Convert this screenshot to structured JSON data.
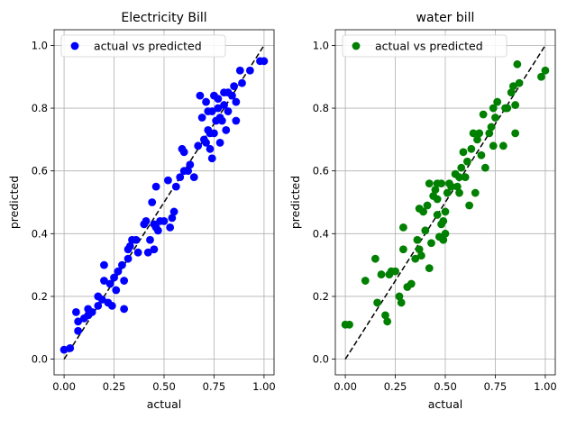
{
  "chart_data": [
    {
      "type": "scatter",
      "title": "Electricity Bill",
      "xlabel": "actual",
      "ylabel": "predicted",
      "xlim": [
        -0.05,
        1.05
      ],
      "ylim": [
        -0.05,
        1.05
      ],
      "xticks": [
        "0.00",
        "0.25",
        "0.50",
        "0.75",
        "1.00"
      ],
      "yticks": [
        "0.0",
        "0.2",
        "0.4",
        "0.6",
        "0.8",
        "1.0"
      ],
      "grid": true,
      "legend_position": "top-left",
      "reference_line": {
        "style": "dashed",
        "color": "#000000",
        "from": [
          0,
          0
        ],
        "to": [
          1,
          1
        ]
      },
      "series": [
        {
          "name": "actual vs predicted",
          "color": "#0000ff",
          "points": [
            [
              0.0,
              0.03
            ],
            [
              0.03,
              0.035
            ],
            [
              0.06,
              0.15
            ],
            [
              0.07,
              0.09
            ],
            [
              0.07,
              0.12
            ],
            [
              0.1,
              0.13
            ],
            [
              0.12,
              0.14
            ],
            [
              0.12,
              0.16
            ],
            [
              0.14,
              0.15
            ],
            [
              0.17,
              0.17
            ],
            [
              0.17,
              0.2
            ],
            [
              0.19,
              0.19
            ],
            [
              0.2,
              0.25
            ],
            [
              0.2,
              0.3
            ],
            [
              0.22,
              0.18
            ],
            [
              0.23,
              0.24
            ],
            [
              0.24,
              0.17
            ],
            [
              0.25,
              0.26
            ],
            [
              0.26,
              0.22
            ],
            [
              0.27,
              0.28
            ],
            [
              0.29,
              0.3
            ],
            [
              0.3,
              0.25
            ],
            [
              0.3,
              0.16
            ],
            [
              0.32,
              0.32
            ],
            [
              0.32,
              0.35
            ],
            [
              0.33,
              0.36
            ],
            [
              0.34,
              0.38
            ],
            [
              0.36,
              0.38
            ],
            [
              0.37,
              0.34
            ],
            [
              0.4,
              0.43
            ],
            [
              0.41,
              0.44
            ],
            [
              0.42,
              0.34
            ],
            [
              0.43,
              0.38
            ],
            [
              0.44,
              0.5
            ],
            [
              0.45,
              0.35
            ],
            [
              0.45,
              0.43
            ],
            [
              0.46,
              0.55
            ],
            [
              0.46,
              0.42
            ],
            [
              0.47,
              0.41
            ],
            [
              0.48,
              0.44
            ],
            [
              0.5,
              0.44
            ],
            [
              0.52,
              0.57
            ],
            [
              0.53,
              0.42
            ],
            [
              0.54,
              0.45
            ],
            [
              0.55,
              0.47
            ],
            [
              0.56,
              0.55
            ],
            [
              0.58,
              0.58
            ],
            [
              0.59,
              0.67
            ],
            [
              0.6,
              0.66
            ],
            [
              0.6,
              0.6
            ],
            [
              0.62,
              0.6
            ],
            [
              0.63,
              0.62
            ],
            [
              0.65,
              0.58
            ],
            [
              0.67,
              0.68
            ],
            [
              0.68,
              0.84
            ],
            [
              0.69,
              0.77
            ],
            [
              0.7,
              0.7
            ],
            [
              0.71,
              0.69
            ],
            [
              0.71,
              0.82
            ],
            [
              0.72,
              0.79
            ],
            [
              0.72,
              0.73
            ],
            [
              0.73,
              0.72
            ],
            [
              0.73,
              0.67
            ],
            [
              0.74,
              0.64
            ],
            [
              0.74,
              0.79
            ],
            [
              0.75,
              0.72
            ],
            [
              0.75,
              0.84
            ],
            [
              0.76,
              0.76
            ],
            [
              0.77,
              0.83
            ],
            [
              0.77,
              0.8
            ],
            [
              0.78,
              0.77
            ],
            [
              0.78,
              0.69
            ],
            [
              0.79,
              0.76
            ],
            [
              0.8,
              0.85
            ],
            [
              0.8,
              0.81
            ],
            [
              0.81,
              0.73
            ],
            [
              0.82,
              0.79
            ],
            [
              0.82,
              0.85
            ],
            [
              0.84,
              0.84
            ],
            [
              0.85,
              0.87
            ],
            [
              0.86,
              0.76
            ],
            [
              0.86,
              0.82
            ],
            [
              0.88,
              0.92
            ],
            [
              0.89,
              0.88
            ],
            [
              0.93,
              0.92
            ],
            [
              0.98,
              0.95
            ],
            [
              1.0,
              0.95
            ]
          ]
        }
      ]
    },
    {
      "type": "scatter",
      "title": "water bill",
      "xlabel": "actual",
      "ylabel": "predicted",
      "xlim": [
        -0.05,
        1.05
      ],
      "ylim": [
        -0.05,
        1.05
      ],
      "xticks": [
        "0.00",
        "0.25",
        "0.50",
        "0.75",
        "1.00"
      ],
      "yticks": [
        "0.0",
        "0.2",
        "0.4",
        "0.6",
        "0.8",
        "1.0"
      ],
      "grid": true,
      "legend_position": "top-left",
      "reference_line": {
        "style": "dashed",
        "color": "#000000",
        "from": [
          0,
          0
        ],
        "to": [
          1,
          1
        ]
      },
      "series": [
        {
          "name": "actual vs predicted",
          "color": "#008000",
          "points": [
            [
              0.0,
              0.11
            ],
            [
              0.02,
              0.11
            ],
            [
              0.1,
              0.25
            ],
            [
              0.15,
              0.32
            ],
            [
              0.16,
              0.18
            ],
            [
              0.18,
              0.27
            ],
            [
              0.2,
              0.14
            ],
            [
              0.21,
              0.12
            ],
            [
              0.22,
              0.27
            ],
            [
              0.23,
              0.28
            ],
            [
              0.25,
              0.28
            ],
            [
              0.27,
              0.2
            ],
            [
              0.28,
              0.18
            ],
            [
              0.29,
              0.35
            ],
            [
              0.29,
              0.42
            ],
            [
              0.31,
              0.23
            ],
            [
              0.33,
              0.24
            ],
            [
              0.35,
              0.32
            ],
            [
              0.36,
              0.38
            ],
            [
              0.37,
              0.48
            ],
            [
              0.37,
              0.35
            ],
            [
              0.38,
              0.33
            ],
            [
              0.39,
              0.47
            ],
            [
              0.4,
              0.41
            ],
            [
              0.41,
              0.49
            ],
            [
              0.42,
              0.29
            ],
            [
              0.42,
              0.56
            ],
            [
              0.43,
              0.37
            ],
            [
              0.44,
              0.52
            ],
            [
              0.45,
              0.54
            ],
            [
              0.46,
              0.56
            ],
            [
              0.46,
              0.51
            ],
            [
              0.46,
              0.46
            ],
            [
              0.47,
              0.39
            ],
            [
              0.48,
              0.56
            ],
            [
              0.48,
              0.43
            ],
            [
              0.49,
              0.44
            ],
            [
              0.49,
              0.38
            ],
            [
              0.5,
              0.47
            ],
            [
              0.5,
              0.4
            ],
            [
              0.51,
              0.53
            ],
            [
              0.52,
              0.56
            ],
            [
              0.53,
              0.55
            ],
            [
              0.55,
              0.59
            ],
            [
              0.56,
              0.55
            ],
            [
              0.57,
              0.53
            ],
            [
              0.57,
              0.58
            ],
            [
              0.58,
              0.61
            ],
            [
              0.59,
              0.66
            ],
            [
              0.6,
              0.58
            ],
            [
              0.61,
              0.63
            ],
            [
              0.62,
              0.49
            ],
            [
              0.63,
              0.67
            ],
            [
              0.64,
              0.72
            ],
            [
              0.65,
              0.53
            ],
            [
              0.66,
              0.7
            ],
            [
              0.67,
              0.72
            ],
            [
              0.68,
              0.65
            ],
            [
              0.69,
              0.78
            ],
            [
              0.7,
              0.61
            ],
            [
              0.72,
              0.72
            ],
            [
              0.73,
              0.74
            ],
            [
              0.74,
              0.8
            ],
            [
              0.74,
              0.68
            ],
            [
              0.75,
              0.77
            ],
            [
              0.76,
              0.82
            ],
            [
              0.79,
              0.68
            ],
            [
              0.8,
              0.8
            ],
            [
              0.81,
              0.8
            ],
            [
              0.83,
              0.85
            ],
            [
              0.84,
              0.87
            ],
            [
              0.85,
              0.81
            ],
            [
              0.85,
              0.72
            ],
            [
              0.86,
              0.94
            ],
            [
              0.87,
              0.88
            ],
            [
              0.98,
              0.9
            ],
            [
              1.0,
              0.92
            ]
          ]
        }
      ]
    }
  ]
}
